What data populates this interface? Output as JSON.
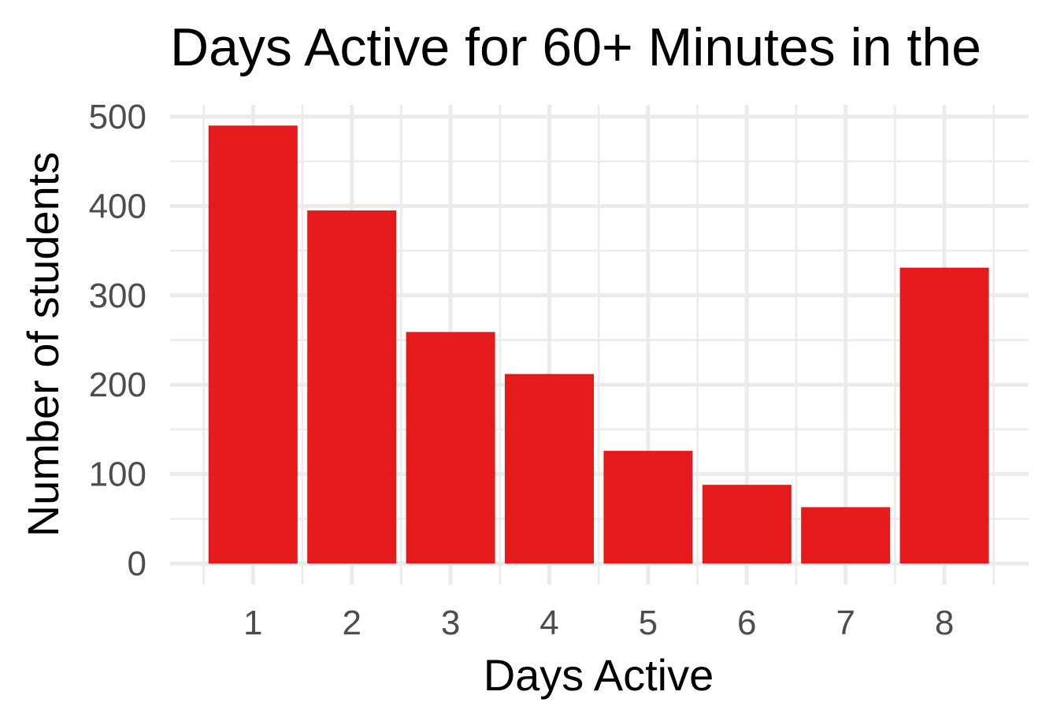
{
  "chart_data": {
    "type": "bar",
    "title": "Days Active for 60+ Minutes in the",
    "xlabel": "Days Active",
    "ylabel": "Number of students",
    "categories": [
      "1",
      "2",
      "3",
      "4",
      "5",
      "6",
      "7",
      "8"
    ],
    "values": [
      490,
      395,
      259,
      212,
      126,
      88,
      63,
      331
    ],
    "ylim": [
      0,
      520
    ],
    "yticks": [
      "0",
      "100",
      "200",
      "300",
      "400",
      "500"
    ],
    "bar_color": "#e41a1c",
    "grid": true,
    "legend": "none"
  }
}
